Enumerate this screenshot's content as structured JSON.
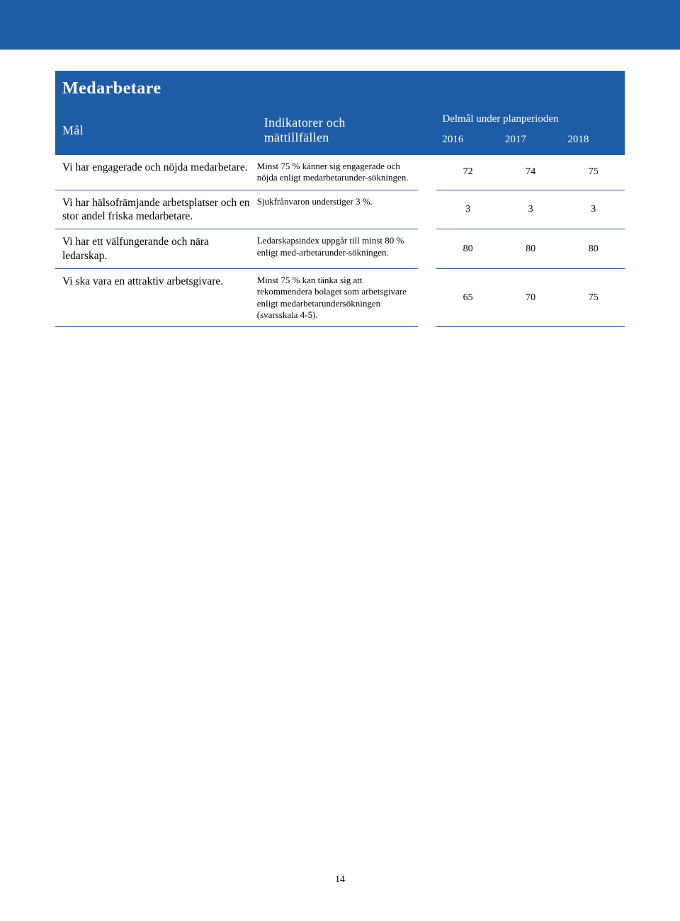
{
  "colors": {
    "header_bg": "#1f5ca8",
    "header_text": "#ffffff",
    "border": "#1f5ca8",
    "body_text": "#000000",
    "page_bg": "#ffffff"
  },
  "table": {
    "title": "Medarbetare",
    "header": {
      "goal": "Mål",
      "indicator": "Indikatorer och mättillfällen",
      "subgoal_label": "Delmål under planperioden",
      "years": [
        "2016",
        "2017",
        "2018"
      ]
    },
    "rows": [
      {
        "goal": "Vi har engagerade och nöjda medarbetare.",
        "indicator": "Minst 75 % känner sig engagerade och nöjda enligt medarbetarunder-sökningen.",
        "values": [
          "72",
          "74",
          "75"
        ]
      },
      {
        "goal": "Vi har hälsofrämjande arbetsplatser och en stor andel friska medarbetare.",
        "indicator": "Sjukfrånvaron   understiger 3 %.",
        "values": [
          "3",
          "3",
          "3"
        ]
      },
      {
        "goal": "Vi har ett välfungerande och nära ledarskap.",
        "indicator": "Ledarskapsindex uppgår till minst 80 % enligt med-arbetarunder-sökningen.",
        "values": [
          "80",
          "80",
          "80"
        ]
      },
      {
        "goal": "Vi ska vara en attraktiv arbetsgivare.",
        "indicator": "Minst 75 % kan tänka sig att rekommendera bolaget som arbetsgivare enligt medarbetarundersökningen (svarsskala 4-5).",
        "values": [
          "65",
          "70",
          "75"
        ]
      }
    ]
  },
  "page_number": "14"
}
